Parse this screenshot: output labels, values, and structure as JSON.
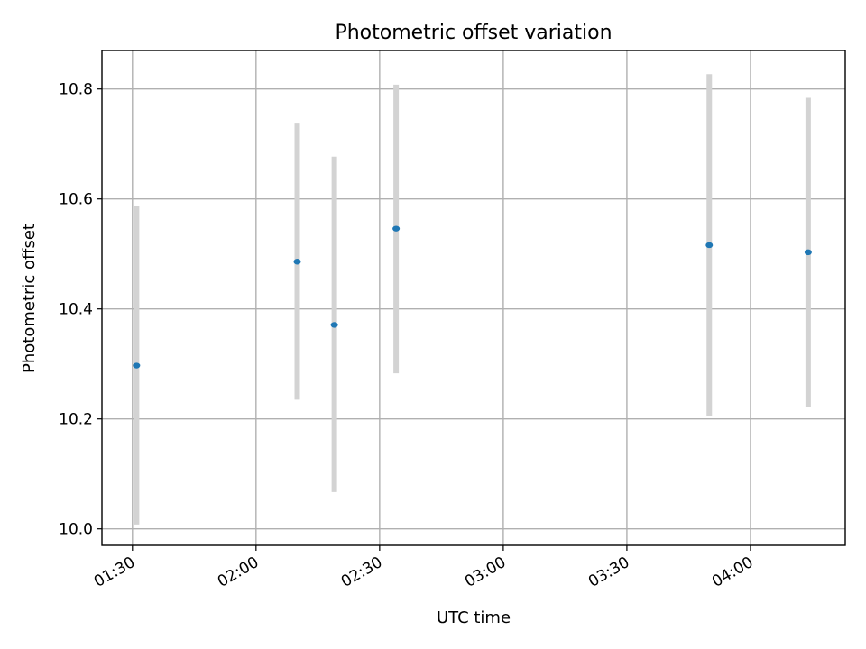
{
  "chart_data": {
    "type": "scatter",
    "title": "Photometric offset variation",
    "xlabel": "UTC time",
    "ylabel": "Photometric offset",
    "xlim": [
      "01:22:36",
      "04:23:00"
    ],
    "ylim": [
      9.97,
      10.87
    ],
    "x_ticks": [
      "01:30",
      "02:00",
      "02:30",
      "03:00",
      "03:30",
      "04:00"
    ],
    "y_ticks": [
      "10.0",
      "10.2",
      "10.4",
      "10.6",
      "10.8"
    ],
    "grid": true,
    "colors": {
      "point": "#1f77b4",
      "errorbar": "#d3d3d3"
    },
    "points": [
      {
        "x": "01:31",
        "y": 10.297,
        "ylow": 10.008,
        "yhigh": 10.587
      },
      {
        "x": "02:10",
        "y": 10.486,
        "ylow": 10.235,
        "yhigh": 10.737
      },
      {
        "x": "02:19",
        "y": 10.371,
        "ylow": 10.067,
        "yhigh": 10.677
      },
      {
        "x": "02:34",
        "y": 10.546,
        "ylow": 10.283,
        "yhigh": 10.808
      },
      {
        "x": "03:50",
        "y": 10.516,
        "ylow": 10.205,
        "yhigh": 10.827
      },
      {
        "x": "04:14",
        "y": 10.503,
        "ylow": 10.222,
        "yhigh": 10.784
      }
    ]
  }
}
